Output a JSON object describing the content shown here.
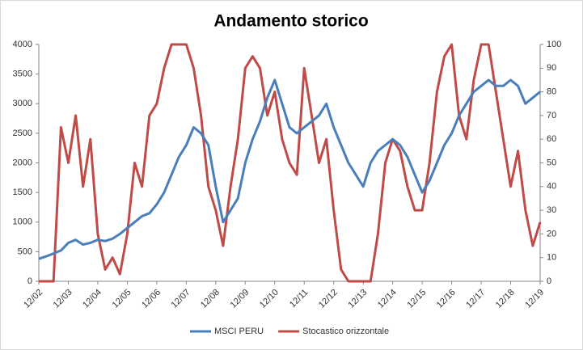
{
  "chart_data": {
    "type": "line",
    "title": "Andamento storico",
    "categories": [
      "12/02",
      null,
      null,
      null,
      "12/03",
      null,
      null,
      null,
      "12/04",
      null,
      null,
      null,
      "12/05",
      null,
      null,
      null,
      "12/06",
      null,
      null,
      null,
      "12/07",
      null,
      null,
      null,
      "12/08",
      null,
      null,
      null,
      "12/09",
      null,
      null,
      null,
      "12/10",
      null,
      null,
      null,
      "12/11",
      null,
      null,
      null,
      "12/12",
      null,
      null,
      null,
      "12/13",
      null,
      null,
      null,
      "12/14",
      null,
      null,
      null,
      "12/15",
      null,
      null,
      null,
      "12/16",
      null,
      null,
      null,
      "12/17",
      null,
      null,
      null,
      "12/18",
      null,
      null,
      null,
      "12/19"
    ],
    "series": [
      {
        "name": "MSCI PERU",
        "color": "#4a7ebb",
        "values": [
          380,
          420,
          470,
          520,
          650,
          700,
          620,
          650,
          700,
          680,
          720,
          800,
          900,
          1000,
          1100,
          1150,
          1300,
          1500,
          1800,
          2100,
          2300,
          2600,
          2500,
          2300,
          1600,
          1000,
          1200,
          1400,
          2000,
          2400,
          2700,
          3100,
          3400,
          3000,
          2600,
          2500,
          2600,
          2700,
          2800,
          3000,
          2600,
          2300,
          2000,
          1800,
          1600,
          2000,
          2200,
          2300,
          2400,
          2300,
          2100,
          1800,
          1500,
          1700,
          2000,
          2300,
          2500,
          2800,
          3000,
          3200,
          3300,
          3400,
          3300,
          3300,
          3400,
          3300,
          3000,
          3100,
          3200
        ]
      },
      {
        "name": "Stocastico orizzontale",
        "color": "#be4b48",
        "axis": "y2",
        "values": [
          0,
          0,
          0,
          65,
          50,
          70,
          40,
          60,
          20,
          5,
          10,
          3,
          20,
          50,
          40,
          70,
          75,
          90,
          100,
          100,
          100,
          90,
          70,
          40,
          30,
          15,
          40,
          60,
          90,
          95,
          90,
          70,
          80,
          60,
          50,
          45,
          90,
          70,
          50,
          60,
          30,
          5,
          0,
          0,
          0,
          0,
          20,
          50,
          60,
          55,
          40,
          30,
          30,
          50,
          80,
          95,
          100,
          70,
          60,
          85,
          100,
          100,
          80,
          60,
          40,
          55,
          30,
          15,
          25
        ]
      }
    ],
    "ylim": [
      0,
      4000
    ],
    "yticks": [
      0,
      500,
      1000,
      1500,
      2000,
      2500,
      3000,
      3500,
      4000
    ],
    "y2lim": [
      0,
      100
    ],
    "y2ticks": [
      0,
      10,
      20,
      30,
      40,
      50,
      60,
      70,
      80,
      90,
      100
    ],
    "legend": "bottom"
  }
}
